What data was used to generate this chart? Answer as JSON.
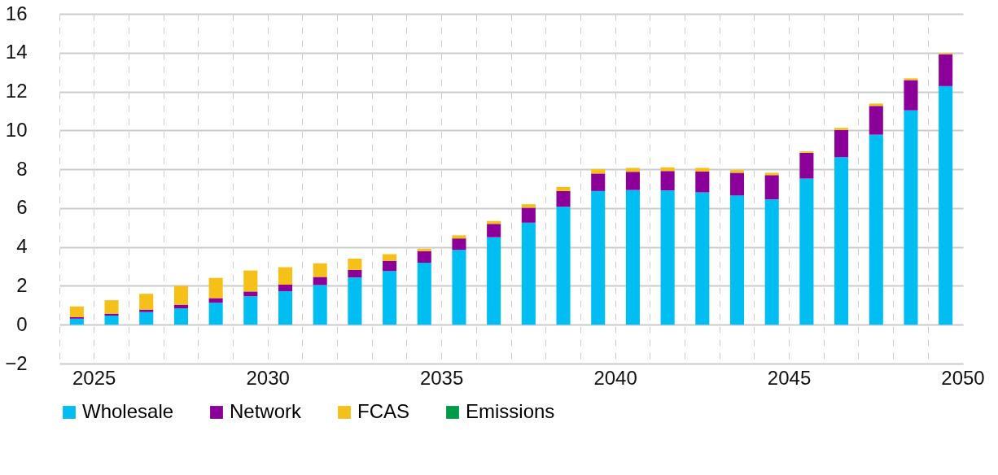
{
  "chart_data": {
    "type": "bar",
    "stacked": true,
    "categories": [
      "2025",
      null,
      null,
      null,
      null,
      "2030",
      null,
      null,
      null,
      null,
      "2035",
      null,
      null,
      null,
      null,
      "2040",
      null,
      null,
      null,
      null,
      "2045",
      null,
      null,
      null,
      null,
      "2050"
    ],
    "series": [
      {
        "name": "Wholesale",
        "color": "#00bef2",
        "values": [
          0.31,
          0.47,
          0.65,
          0.84,
          1.13,
          1.46,
          1.72,
          2.04,
          2.43,
          2.76,
          3.19,
          3.85,
          4.5,
          5.25,
          6.07,
          6.88,
          6.93,
          6.91,
          6.81,
          6.65,
          6.45,
          7.52,
          8.62,
          9.78,
          11.03,
          12.28
        ]
      },
      {
        "name": "Network",
        "color": "#8b0099",
        "values": [
          0.09,
          0.1,
          0.13,
          0.19,
          0.24,
          0.25,
          0.34,
          0.42,
          0.39,
          0.53,
          0.6,
          0.59,
          0.69,
          0.77,
          0.81,
          0.9,
          0.94,
          1.0,
          1.07,
          1.17,
          1.25,
          1.33,
          1.4,
          1.48,
          1.56,
          1.64
        ]
      },
      {
        "name": "FCAS",
        "color": "#f5c018",
        "values": [
          0.54,
          0.69,
          0.81,
          0.97,
          1.04,
          1.08,
          0.9,
          0.7,
          0.58,
          0.34,
          0.12,
          0.16,
          0.15,
          0.18,
          0.21,
          0.23,
          0.2,
          0.19,
          0.19,
          0.14,
          0.12,
          0.07,
          0.11,
          0.12,
          0.09,
          0.06
        ]
      },
      {
        "name": "Emissions",
        "color": "#009b48",
        "values": [
          0,
          0,
          0,
          0,
          0,
          0,
          0,
          0,
          0,
          0,
          0,
          0,
          0,
          0,
          0,
          0,
          0,
          0,
          0,
          0,
          0,
          0,
          0,
          0,
          0,
          0
        ]
      }
    ],
    "ylim": [
      -2,
      16
    ],
    "yticks": [
      -2,
      0,
      2,
      4,
      6,
      8,
      10,
      12,
      14,
      16
    ],
    "grid": true,
    "legend": "bottom"
  }
}
